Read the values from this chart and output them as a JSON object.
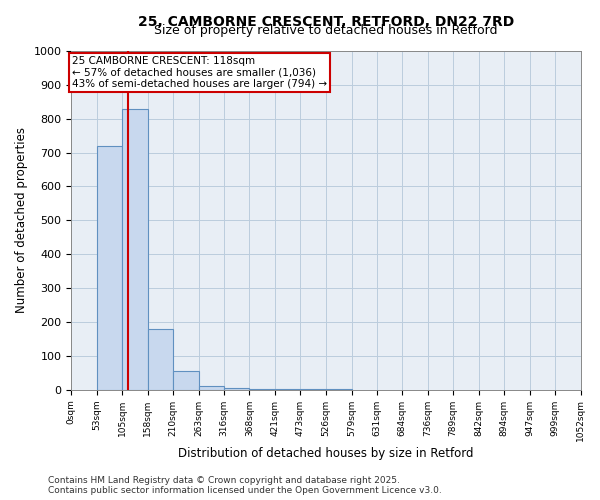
{
  "title": "25, CAMBORNE CRESCENT, RETFORD, DN22 7RD",
  "subtitle": "Size of property relative to detached houses in Retford",
  "xlabel": "Distribution of detached houses by size in Retford",
  "ylabel": "Number of detached properties",
  "bins": [
    0,
    53,
    105,
    158,
    210,
    263,
    316,
    368,
    421,
    473,
    526,
    579,
    631,
    684,
    736,
    789,
    842,
    894,
    947,
    999,
    1052
  ],
  "counts": [
    0,
    720,
    830,
    180,
    55,
    12,
    5,
    2,
    1,
    1,
    1,
    0,
    0,
    0,
    0,
    0,
    0,
    0,
    0,
    0
  ],
  "bar_color": "#c8d8ee",
  "bar_edge_color": "#6090c0",
  "property_size": 118,
  "property_line_color": "#cc0000",
  "annotation_line1": "25 CAMBORNE CRESCENT: 118sqm",
  "annotation_line2": "← 57% of detached houses are smaller (1,036)",
  "annotation_line3": "43% of semi-detached houses are larger (794) →",
  "annotation_box_color": "#cc0000",
  "ylim": [
    0,
    1000
  ],
  "yticks": [
    0,
    100,
    200,
    300,
    400,
    500,
    600,
    700,
    800,
    900,
    1000
  ],
  "xlabels": [
    "0sqm",
    "53sqm",
    "105sqm",
    "158sqm",
    "210sqm",
    "263sqm",
    "316sqm",
    "368sqm",
    "421sqm",
    "473sqm",
    "526sqm",
    "579sqm",
    "631sqm",
    "684sqm",
    "736sqm",
    "789sqm",
    "842sqm",
    "894sqm",
    "947sqm",
    "999sqm",
    "1052sqm"
  ],
  "grid_color": "#bbccdd",
  "background_color": "#e8eef5",
  "footer1": "Contains HM Land Registry data © Crown copyright and database right 2025.",
  "footer2": "Contains public sector information licensed under the Open Government Licence v3.0."
}
